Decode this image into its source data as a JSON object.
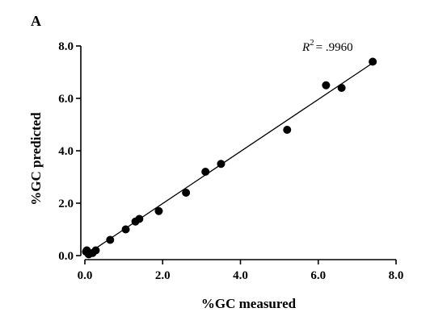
{
  "panel_label": "A",
  "annotation": {
    "r_symbol": "R",
    "superscript": "2",
    "value_text": "= .9960"
  },
  "colors": {
    "points": "#000000",
    "line": "#000000",
    "axes": "#000000",
    "background": "#ffffff"
  },
  "chart_data": {
    "type": "scatter",
    "title": "",
    "xlabel": "%GC measured",
    "ylabel": "%GC predicted",
    "xlim": [
      0,
      8
    ],
    "ylim": [
      0,
      8
    ],
    "x_ticks": [
      0,
      2,
      4,
      6,
      8
    ],
    "y_ticks": [
      0,
      2,
      4,
      6,
      8
    ],
    "x_tick_labels": [
      "0.0",
      "2.0",
      "4.0",
      "6.0",
      "8.0"
    ],
    "y_tick_labels": [
      "0.0",
      "2.0",
      "4.0",
      "6.0",
      "8.0"
    ],
    "grid": false,
    "legend": "none",
    "fit_line": {
      "x": [
        0,
        7.4
      ],
      "y": [
        0,
        7.35
      ]
    },
    "series": [
      {
        "x": [
          0.03,
          0.05,
          0.1,
          0.2,
          0.28,
          0.65,
          1.05,
          1.3,
          1.4,
          1.9,
          2.6,
          3.1,
          3.5,
          5.2,
          6.2,
          6.6,
          7.4
        ],
        "y": [
          0.15,
          0.2,
          0.05,
          0.1,
          0.2,
          0.6,
          1.0,
          1.3,
          1.4,
          1.7,
          2.4,
          3.2,
          3.5,
          4.8,
          6.5,
          6.4,
          7.4
        ]
      }
    ]
  }
}
